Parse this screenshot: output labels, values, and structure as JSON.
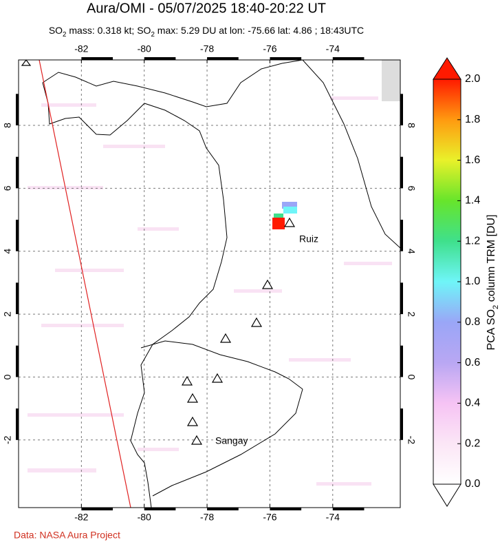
{
  "title": "Aura/OMI - 05/07/2025 18:40-20:22 UT",
  "subtitle": [
    "SO",
    "2",
    " mass: 0.318 kt; SO",
    "2",
    " max: 5.29 DU at lon: -75.66 lat: 4.86 ; 18:43UTC"
  ],
  "map": {
    "xlim": [
      -84,
      -71.85
    ],
    "ylim": [
      -4.15,
      10.08
    ],
    "xticks": [
      -82,
      -80,
      -78,
      -76,
      -74
    ],
    "yticks": [
      8,
      6,
      4,
      2,
      0,
      -2
    ],
    "grid": true,
    "volcano_labels": [
      "Ruiz",
      "Sangay"
    ]
  },
  "colorbar": {
    "lim": [
      0,
      2
    ],
    "ticks": [
      {
        "value": 0,
        "label": "0.0"
      },
      0.2,
      0.4,
      0.6,
      0.8,
      {
        "value": 1,
        "label": "1.0"
      },
      1.2,
      1.4,
      1.6,
      1.8,
      {
        "value": 2,
        "label": "2.0"
      }
    ],
    "label": [
      "PCA SO",
      "2",
      " column TRM [DU]"
    ]
  },
  "footer": "Data: NASA Aura Project"
}
